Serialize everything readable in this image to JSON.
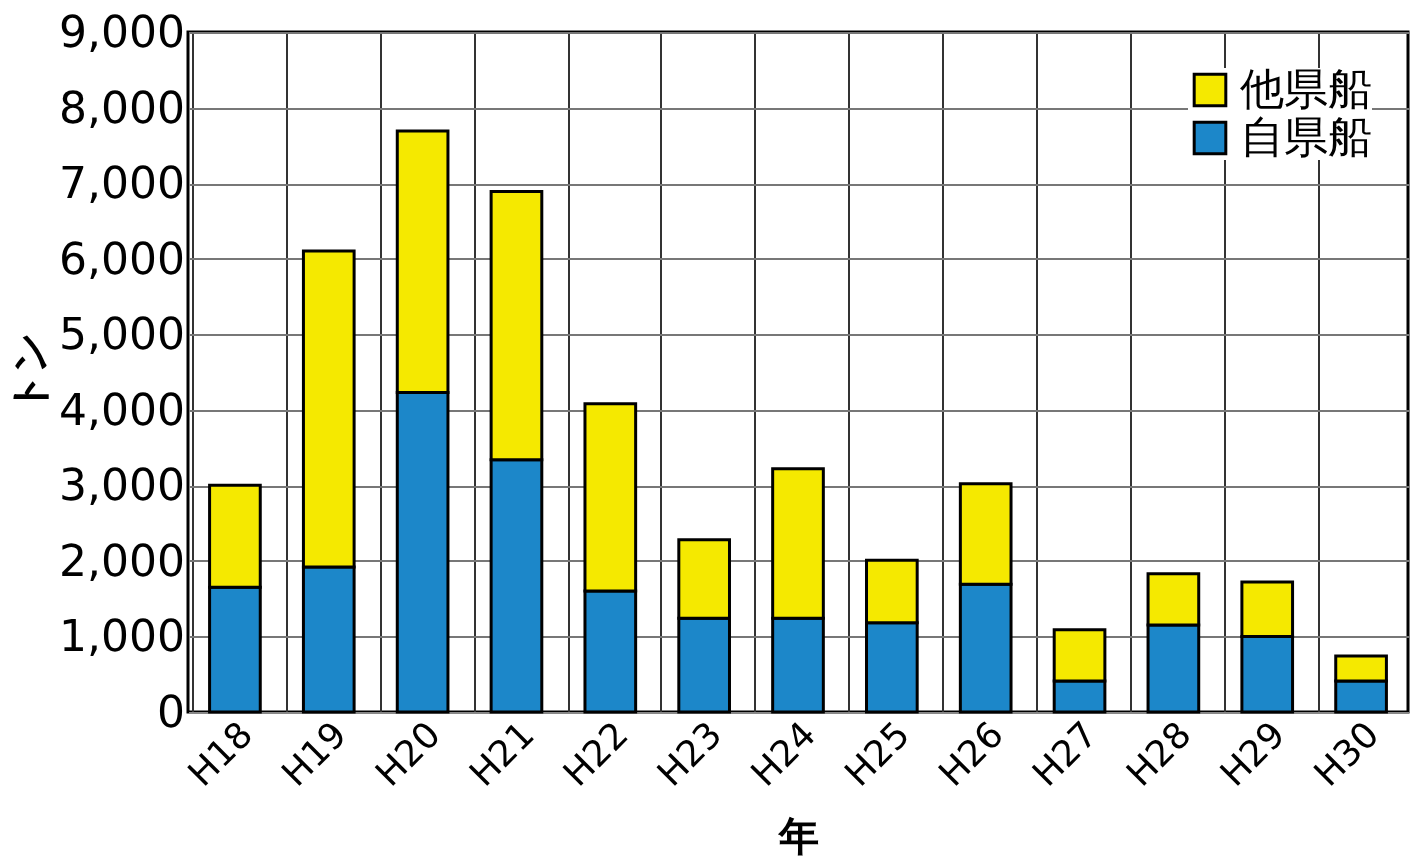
{
  "chart_data": {
    "type": "bar",
    "stacked": true,
    "xlabel": "年",
    "ylabel": "トン",
    "categories": [
      "H18",
      "H19",
      "H20",
      "H21",
      "H22",
      "H23",
      "H24",
      "H25",
      "H26",
      "H27",
      "H28",
      "H29",
      "H30"
    ],
    "series": [
      {
        "name": "自県船",
        "color": "#1c87c9",
        "values": [
          1650,
          1920,
          4230,
          3340,
          1600,
          1240,
          1240,
          1180,
          1690,
          410,
          1150,
          1000,
          410
        ]
      },
      {
        "name": "他県船",
        "color": "#f5e900",
        "values": [
          1350,
          4180,
          3460,
          3550,
          2480,
          1040,
          1980,
          830,
          1330,
          680,
          680,
          720,
          330
        ]
      }
    ],
    "ylim": [
      0,
      9000
    ],
    "yticks": [
      0,
      {
        "value": 1000,
        "label": "1,000"
      },
      {
        "value": 2000,
        "label": "2,000"
      },
      {
        "value": 3000,
        "label": "3,000"
      },
      {
        "value": 4000,
        "label": "4,000"
      },
      {
        "value": 5000,
        "label": "5,000"
      },
      {
        "value": 6000,
        "label": "6,000"
      },
      {
        "value": 7000,
        "label": "7,000"
      },
      {
        "value": 8000,
        "label": "8,000"
      },
      {
        "value": 9000,
        "label": "9,000"
      }
    ],
    "grid": true,
    "legend": "top right"
  }
}
